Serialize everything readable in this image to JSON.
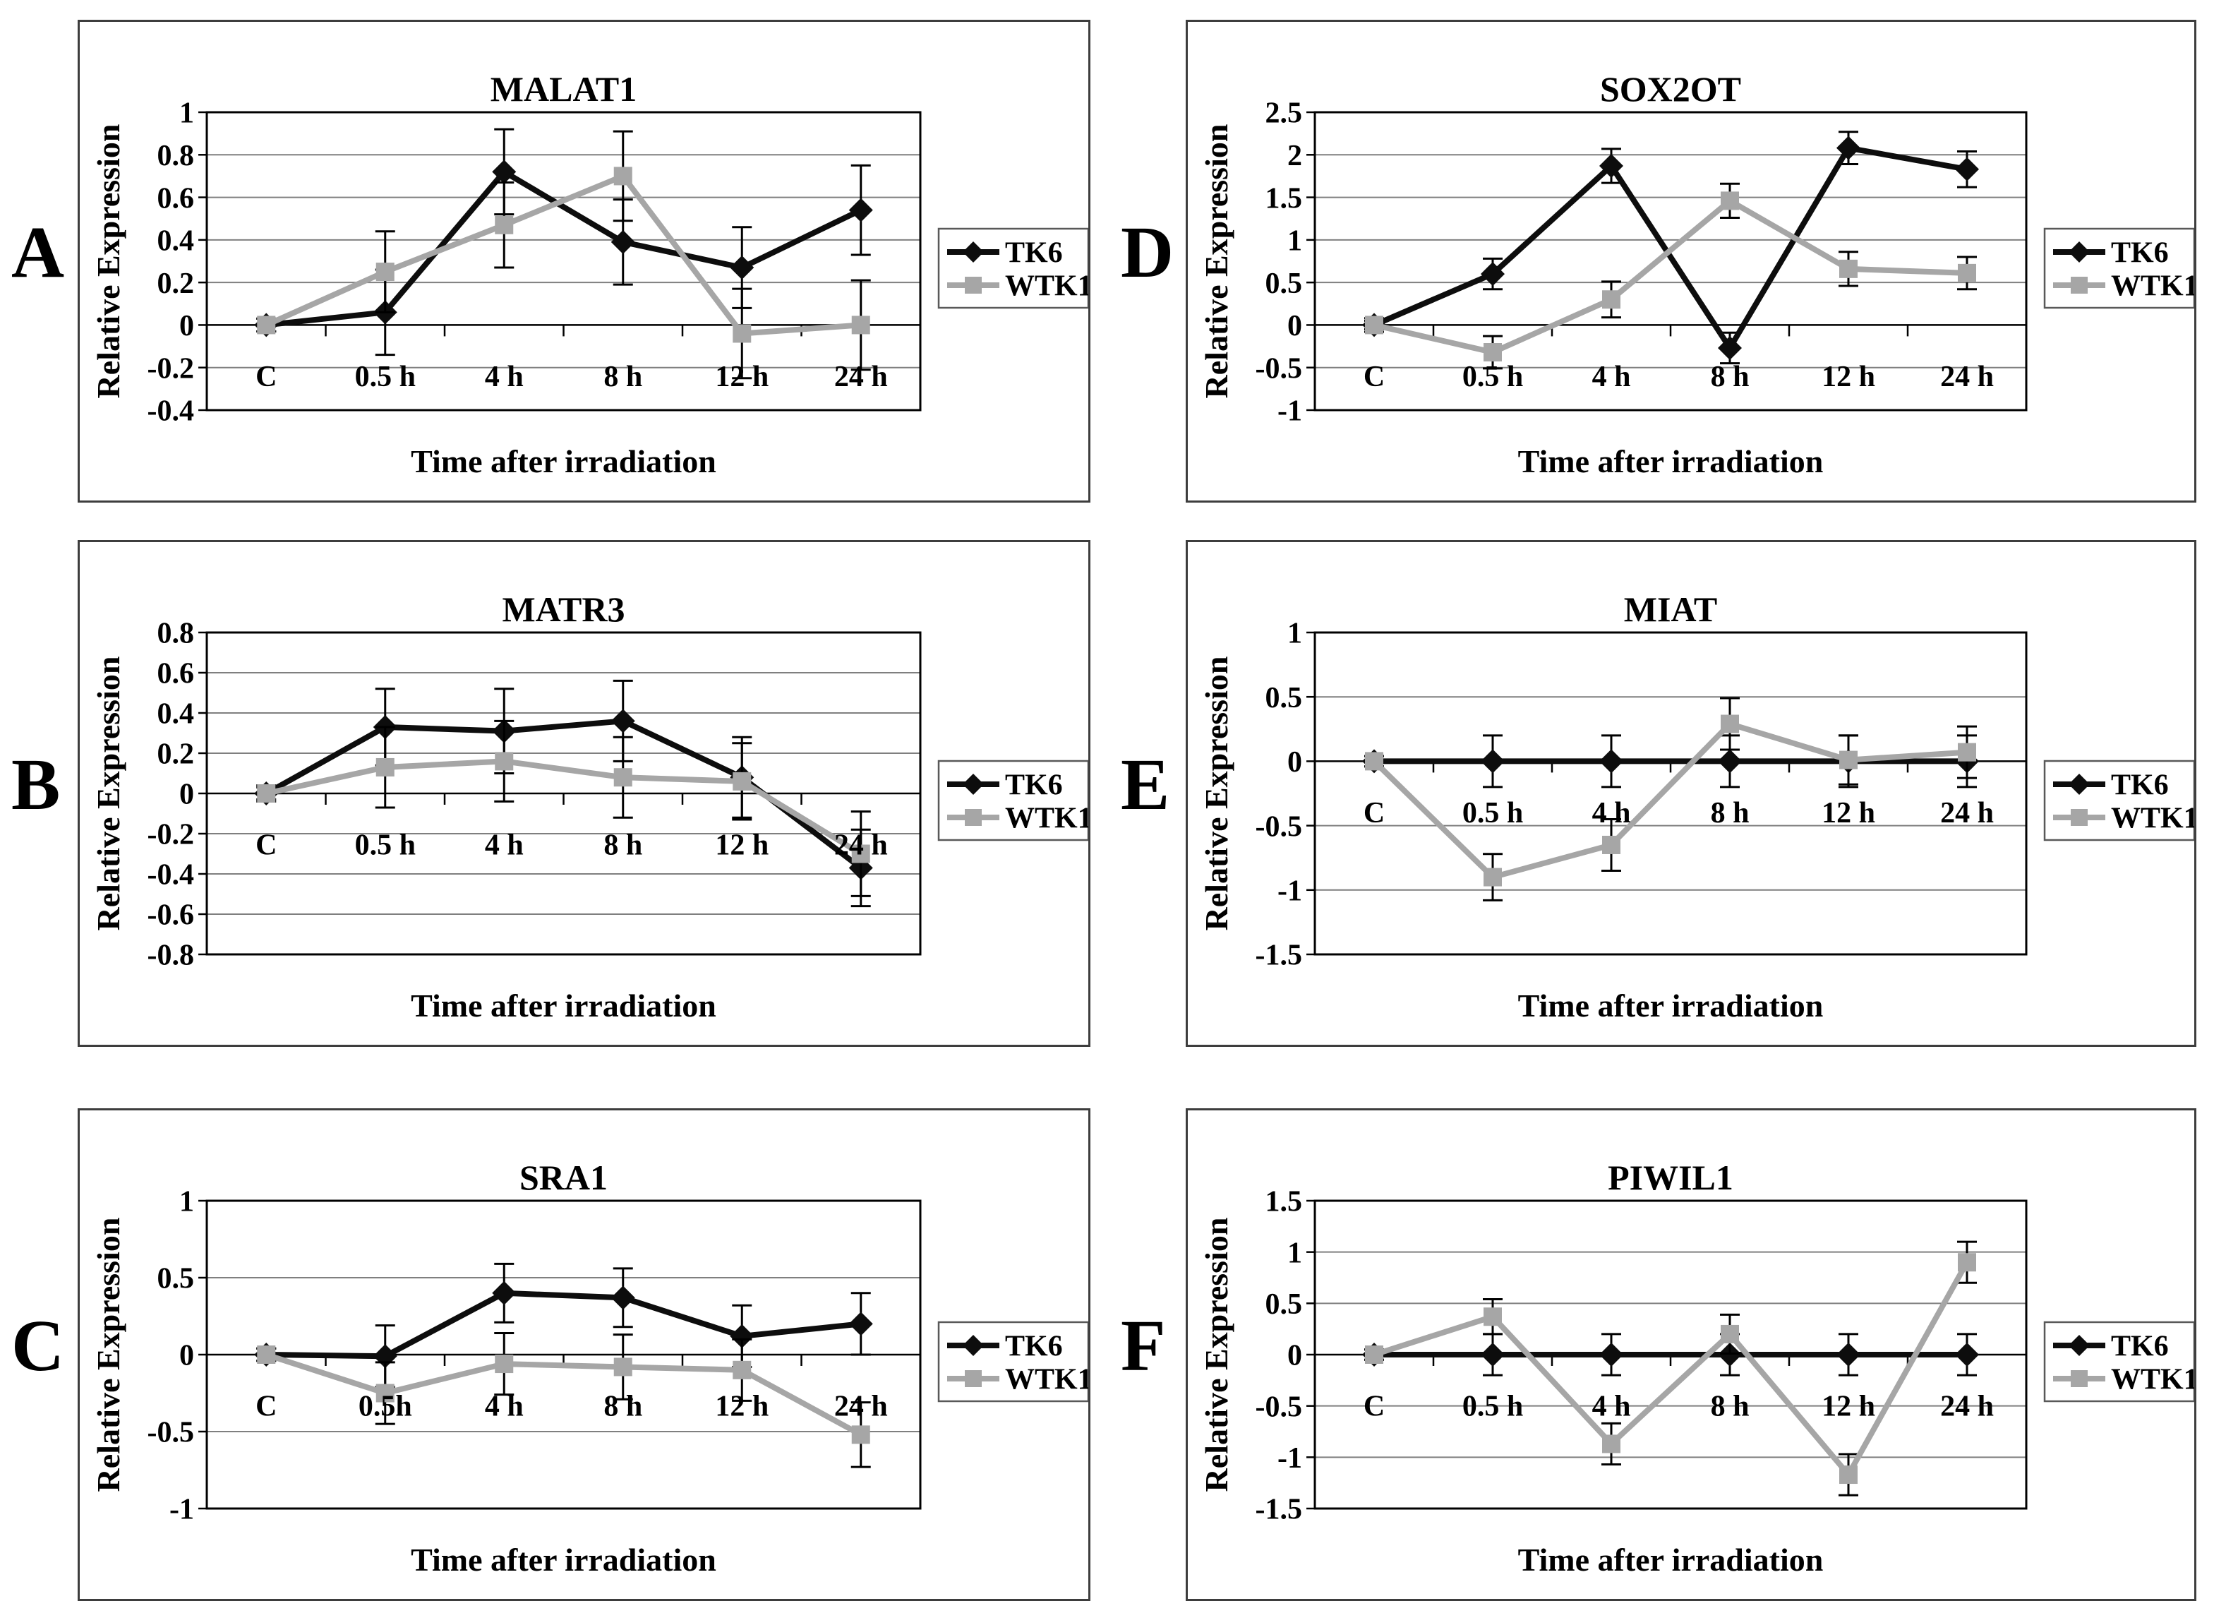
{
  "figure": {
    "ylabel": "Relative Expression",
    "xlabel": "Time after irradiation",
    "legend": [
      {
        "label": "TK6",
        "marker": "diamond"
      },
      {
        "label": "WTK1",
        "marker": "square"
      }
    ],
    "colors": {
      "TK6": "#0d0d0d",
      "WTK1": "#a6a6a6",
      "error_bar": "#000000",
      "gridline": "#7f7f7f",
      "frame": "#000000",
      "panel_border": "#3d3d3d",
      "legend_border": "#595959",
      "background": "#ffffff",
      "text": "#000000"
    }
  },
  "chart_data": [
    {
      "type": "line",
      "panel_letter": "A",
      "title": "MALAT1",
      "xlabel": "Time after irradiation",
      "ylabel": "Relative Expression",
      "categories": [
        "C",
        "0.5 h",
        "4 h",
        "8 h",
        "12 h",
        "24 h"
      ],
      "ylim": [
        -0.4,
        1
      ],
      "ytick_step": 0.2,
      "grid": true,
      "legend_position": "right",
      "series": [
        {
          "name": "TK6",
          "marker": "diamond",
          "values": [
            0,
            0.06,
            0.72,
            0.39,
            0.27,
            0.54
          ],
          "errors": [
            0.03,
            0.2,
            0.2,
            0.2,
            0.19,
            0.21
          ]
        },
        {
          "name": "WTK1",
          "marker": "square",
          "values": [
            0,
            0.25,
            0.47,
            0.7,
            -0.04,
            0
          ],
          "errors": [
            0.03,
            0.19,
            0.2,
            0.21,
            0.21,
            0.21
          ]
        }
      ]
    },
    {
      "type": "line",
      "panel_letter": "B",
      "title": "MATR3",
      "xlabel": "Time after irradiation",
      "ylabel": "Relative Expression",
      "categories": [
        "C",
        "0.5 h",
        "4 h",
        "8 h",
        "12 h",
        "24 h"
      ],
      "ylim": [
        -0.8,
        0.8
      ],
      "ytick_step": 0.2,
      "grid": true,
      "legend_position": "right",
      "series": [
        {
          "name": "TK6",
          "marker": "diamond",
          "values": [
            0,
            0.33,
            0.31,
            0.36,
            0.08,
            -0.37
          ],
          "errors": [
            0.04,
            0.19,
            0.21,
            0.2,
            0.2,
            0.19
          ]
        },
        {
          "name": "WTK1",
          "marker": "square",
          "values": [
            0,
            0.13,
            0.16,
            0.08,
            0.06,
            -0.3
          ],
          "errors": [
            0.03,
            0.2,
            0.2,
            0.2,
            0.19,
            0.21
          ]
        }
      ]
    },
    {
      "type": "line",
      "panel_letter": "C",
      "title": "SRA1",
      "xlabel": "Time after irradiation",
      "ylabel": "Relative Expression",
      "categories": [
        "C",
        "0.5h",
        "4 h",
        "8 h",
        "12 h",
        "24 h"
      ],
      "ylim": [
        -1,
        1
      ],
      "ytick_step": 0.5,
      "grid": true,
      "legend_position": "right",
      "series": [
        {
          "name": "TK6",
          "marker": "diamond",
          "values": [
            0,
            -0.01,
            0.4,
            0.37,
            0.12,
            0.2
          ],
          "errors": [
            0.04,
            0.2,
            0.19,
            0.19,
            0.2,
            0.2
          ]
        },
        {
          "name": "WTK1",
          "marker": "square",
          "values": [
            0,
            -0.25,
            -0.06,
            -0.08,
            -0.1,
            -0.52
          ],
          "errors": [
            0.04,
            0.2,
            0.2,
            0.21,
            0.2,
            0.21
          ]
        }
      ]
    },
    {
      "type": "line",
      "panel_letter": "D",
      "title": "SOX2OT",
      "xlabel": "Time after irradiation",
      "ylabel": "Relative Expression",
      "categories": [
        "C",
        "0.5 h",
        "4 h",
        "8 h",
        "12 h",
        "24 h"
      ],
      "ylim": [
        -1,
        2.5
      ],
      "ytick_step": 0.5,
      "grid": true,
      "legend_position": "right",
      "series": [
        {
          "name": "TK6",
          "marker": "diamond",
          "values": [
            0,
            0.6,
            1.87,
            -0.27,
            2.08,
            1.83
          ],
          "errors": [
            0.08,
            0.18,
            0.2,
            0.18,
            0.19,
            0.21
          ]
        },
        {
          "name": "WTK1",
          "marker": "square",
          "values": [
            0,
            -0.32,
            0.3,
            1.46,
            0.66,
            0.61
          ],
          "errors": [
            0.05,
            0.19,
            0.21,
            0.2,
            0.2,
            0.19
          ]
        }
      ]
    },
    {
      "type": "line",
      "panel_letter": "E",
      "title": "MIAT",
      "xlabel": "Time after irradiation",
      "ylabel": "Relative Expression",
      "categories": [
        "C",
        "0.5 h",
        "4 h",
        "8 h",
        "12 h",
        "24 h"
      ],
      "ylim": [
        -1.5,
        1
      ],
      "ytick_step": 0.5,
      "grid": true,
      "legend_position": "right",
      "series": [
        {
          "name": "TK6",
          "marker": "diamond",
          "values": [
            0,
            0,
            0,
            0,
            0,
            0
          ],
          "errors": [
            0.04,
            0.2,
            0.2,
            0.2,
            0.2,
            0.2
          ]
        },
        {
          "name": "WTK1",
          "marker": "square",
          "values": [
            0,
            -0.9,
            -0.65,
            0.29,
            0.01,
            0.07
          ],
          "errors": [
            0.04,
            0.18,
            0.2,
            0.2,
            0.19,
            0.2
          ]
        }
      ]
    },
    {
      "type": "line",
      "panel_letter": "F",
      "title": "PIWIL1",
      "xlabel": "Time after irradiation",
      "ylabel": "Relative Expression",
      "categories": [
        "C",
        "0.5 h",
        "4 h",
        "8 h",
        "12 h",
        "24 h"
      ],
      "ylim": [
        -1.5,
        1.5
      ],
      "ytick_step": 0.5,
      "grid": true,
      "legend_position": "right",
      "series": [
        {
          "name": "TK6",
          "marker": "diamond",
          "values": [
            0,
            0,
            0,
            0,
            0,
            0
          ],
          "errors": [
            0.05,
            0.2,
            0.2,
            0.2,
            0.2,
            0.2
          ]
        },
        {
          "name": "WTK1",
          "marker": "square",
          "values": [
            0,
            0.37,
            -0.87,
            0.2,
            -1.17,
            0.9
          ],
          "errors": [
            0.05,
            0.17,
            0.2,
            0.19,
            0.2,
            0.2
          ]
        }
      ]
    }
  ]
}
